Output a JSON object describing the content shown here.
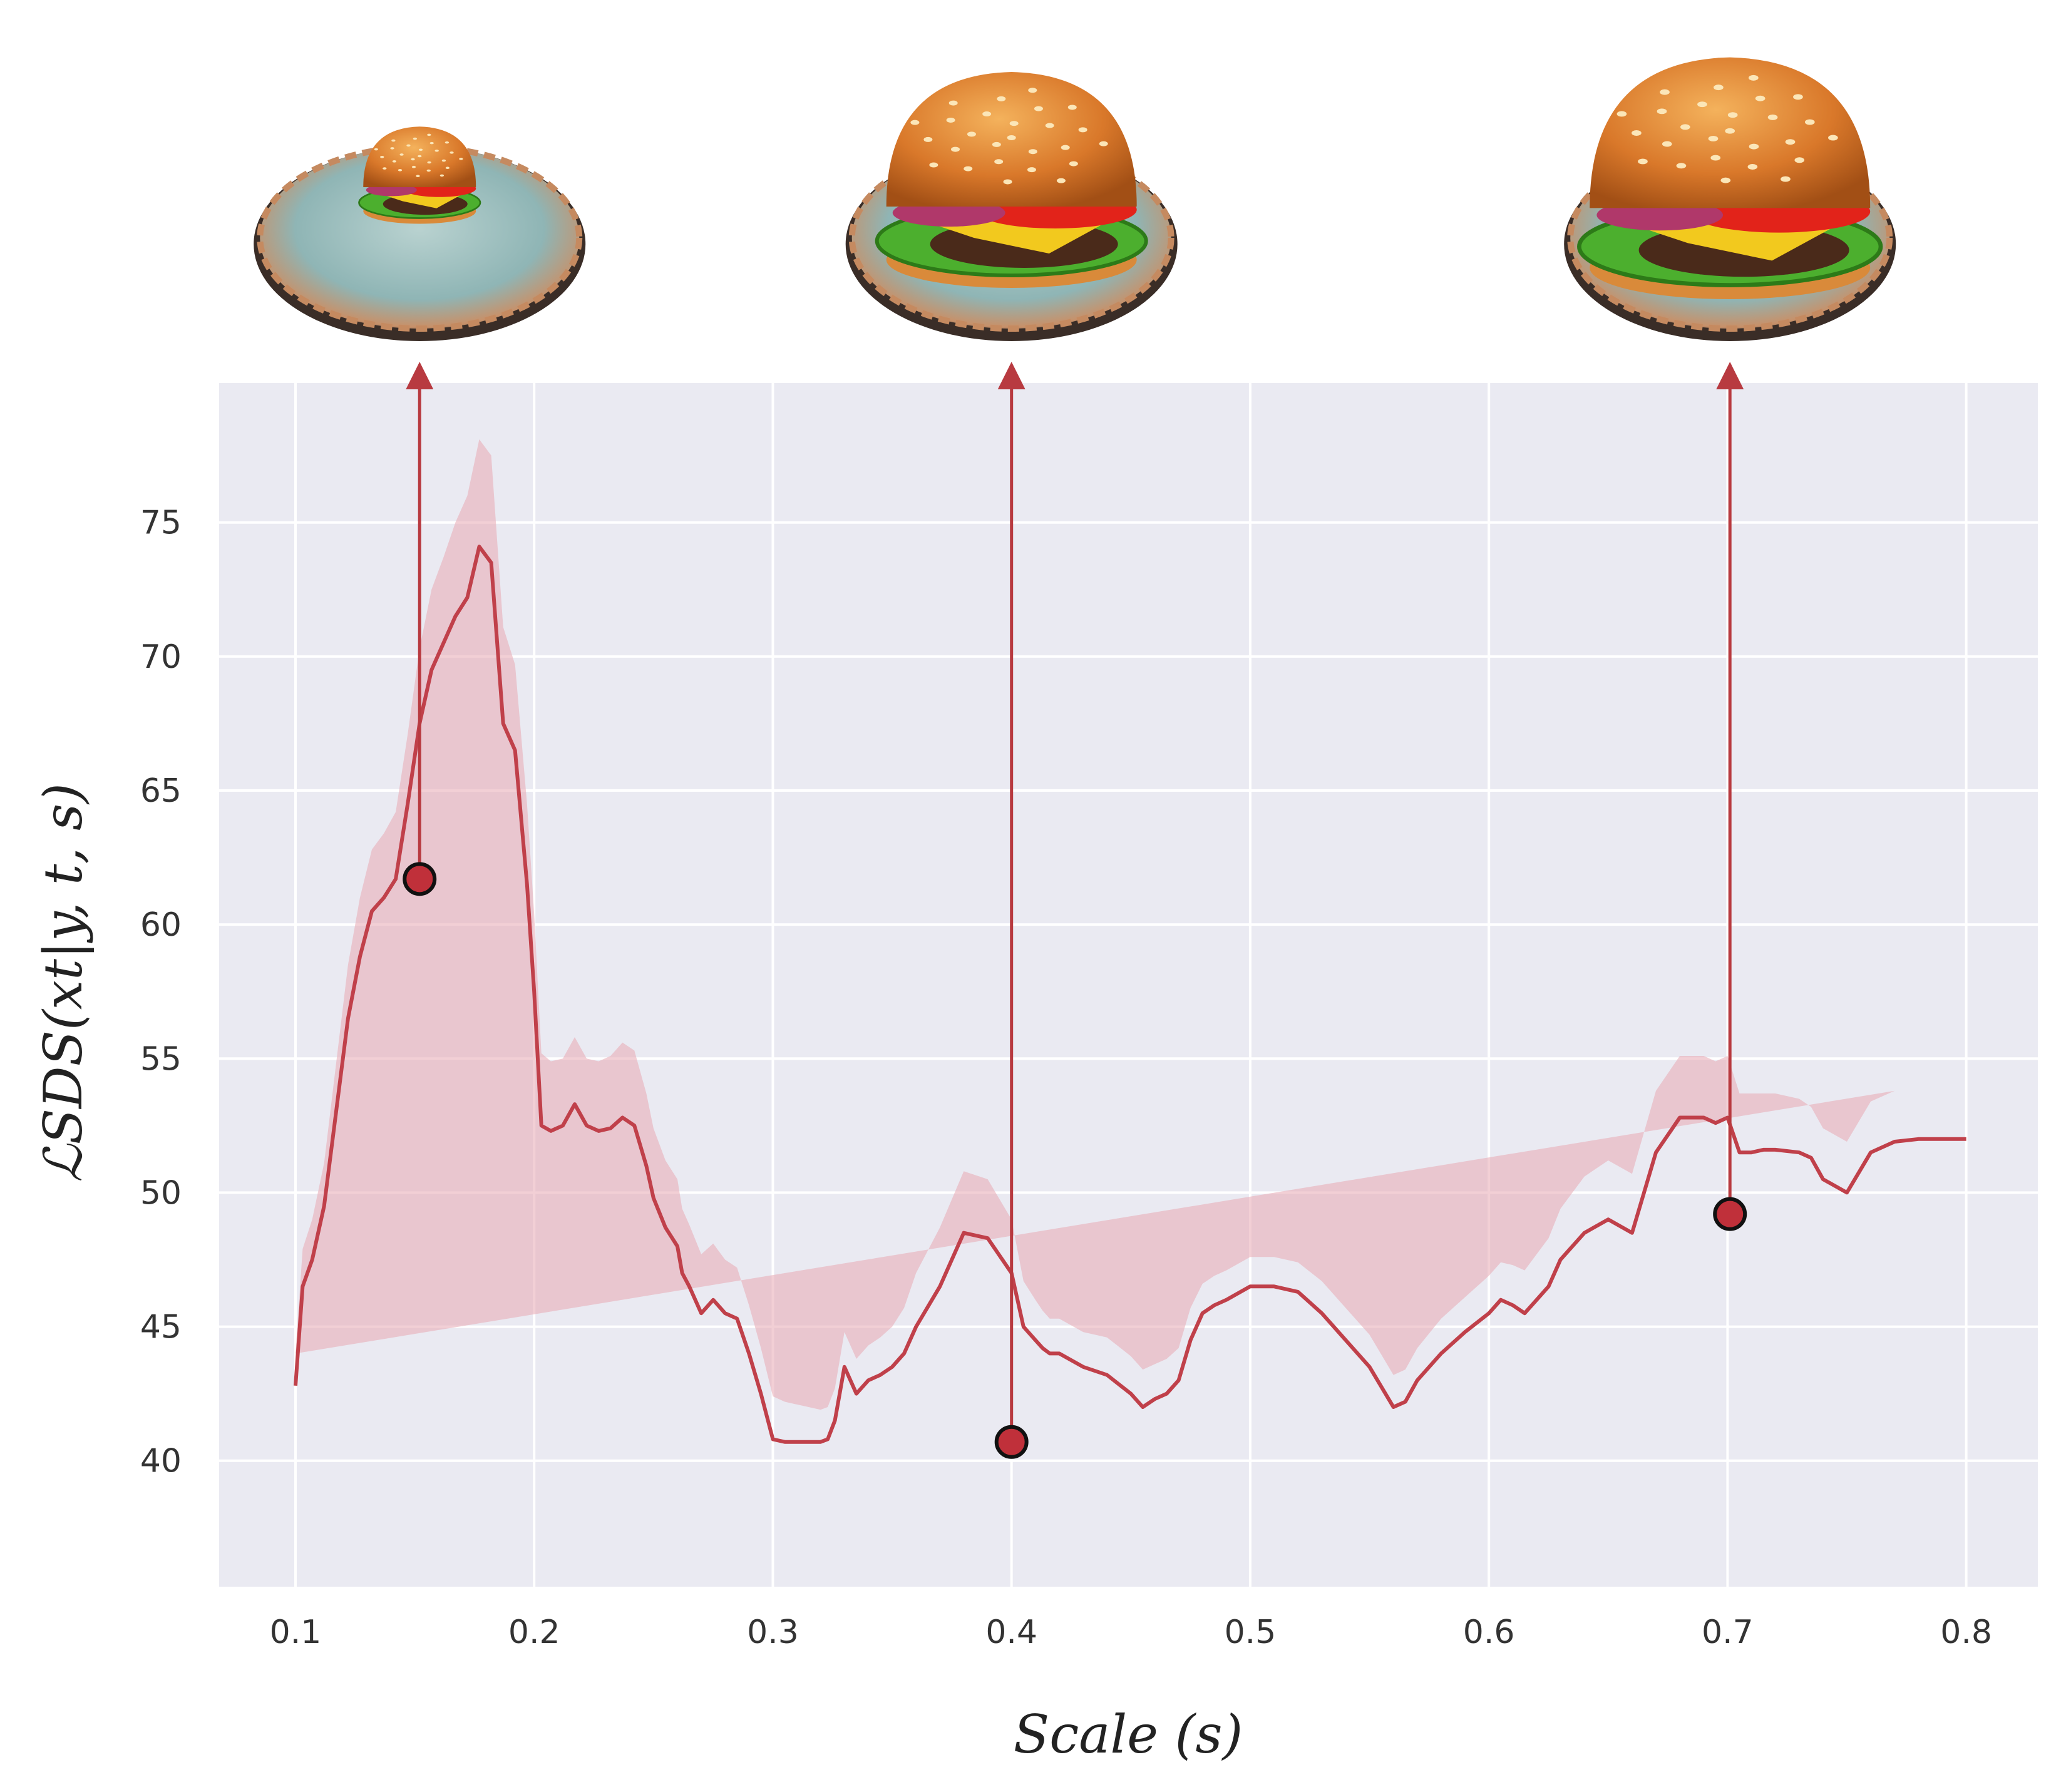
{
  "chart_data": {
    "type": "line",
    "title": "",
    "xlabel": "Scale (s)",
    "ylabel": "ℒSDS(xt|y, t, s)",
    "xlim": [
      0.068,
      0.83
    ],
    "ylim": [
      35.3,
      80.2
    ],
    "grid": true,
    "legend": "none",
    "x_ticks": [
      0.1,
      0.2,
      0.3,
      0.4,
      0.5,
      0.6,
      0.7,
      0.8
    ],
    "x_tick_labels": [
      "0.1",
      "0.2",
      "0.3",
      "0.4",
      "0.5",
      "0.6",
      "0.7",
      "0.8"
    ],
    "y_ticks": [
      40,
      45,
      50,
      55,
      60,
      65,
      70,
      75
    ],
    "y_tick_labels": [
      "40",
      "45",
      "50",
      "55",
      "60",
      "65",
      "70",
      "75"
    ],
    "series": [
      {
        "color": "#c0404a",
        "band_color": "#e8a7b2",
        "x": [
          0.1,
          0.103,
          0.107,
          0.112,
          0.117,
          0.122,
          0.127,
          0.132,
          0.137,
          0.142,
          0.147,
          0.152,
          0.157,
          0.162,
          0.167,
          0.172,
          0.177,
          0.182,
          0.187,
          0.192,
          0.197,
          0.2,
          0.203,
          0.207,
          0.212,
          0.217,
          0.222,
          0.227,
          0.232,
          0.237,
          0.242,
          0.247,
          0.25,
          0.255,
          0.26,
          0.262,
          0.265,
          0.27,
          0.275,
          0.28,
          0.285,
          0.29,
          0.295,
          0.3,
          0.305,
          0.31,
          0.315,
          0.32,
          0.323,
          0.326,
          0.33,
          0.335,
          0.34,
          0.345,
          0.35,
          0.355,
          0.36,
          0.37,
          0.38,
          0.39,
          0.4,
          0.405,
          0.41,
          0.413,
          0.416,
          0.42,
          0.43,
          0.44,
          0.45,
          0.455,
          0.46,
          0.465,
          0.47,
          0.475,
          0.48,
          0.485,
          0.49,
          0.5,
          0.51,
          0.52,
          0.53,
          0.54,
          0.55,
          0.56,
          0.565,
          0.57,
          0.58,
          0.59,
          0.6,
          0.605,
          0.61,
          0.615,
          0.62,
          0.625,
          0.63,
          0.635,
          0.64,
          0.65,
          0.66,
          0.67,
          0.68,
          0.69,
          0.695,
          0.7,
          0.705,
          0.71,
          0.715,
          0.72,
          0.73,
          0.735,
          0.74,
          0.75,
          0.76,
          0.77,
          0.78,
          0.785,
          0.79,
          0.8
        ],
        "y": [
          42.8,
          46.5,
          47.5,
          49.5,
          53.0,
          56.5,
          58.8,
          60.5,
          61.0,
          61.7,
          64.5,
          67.5,
          69.5,
          70.5,
          71.5,
          72.2,
          74.1,
          73.5,
          67.5,
          66.5,
          61.5,
          57.5,
          52.5,
          52.3,
          52.5,
          53.3,
          52.5,
          52.3,
          52.4,
          52.8,
          52.5,
          51.0,
          49.8,
          48.7,
          48.0,
          47.0,
          46.5,
          45.5,
          46.0,
          45.5,
          45.3,
          44.0,
          42.5,
          40.8,
          40.7,
          40.7,
          40.7,
          40.7,
          40.8,
          41.5,
          43.5,
          42.5,
          43.0,
          43.2,
          43.5,
          44.0,
          45.0,
          46.5,
          48.5,
          48.3,
          47.0,
          45.0,
          44.5,
          44.2,
          44.0,
          44.0,
          43.5,
          43.2,
          42.5,
          42.0,
          42.3,
          42.5,
          43.0,
          44.5,
          45.5,
          45.8,
          46.0,
          46.5,
          46.5,
          46.3,
          45.5,
          44.5,
          43.5,
          42.0,
          42.2,
          43.0,
          44.0,
          44.8,
          45.5,
          46.0,
          45.8,
          45.5,
          46.0,
          46.5,
          47.5,
          48.0,
          48.5,
          49.0,
          48.5,
          51.5,
          52.8,
          52.8,
          52.6,
          52.8,
          51.5,
          51.5,
          51.6,
          51.6,
          51.5,
          51.3,
          50.5,
          50.0,
          51.5,
          51.9,
          52.0,
          52.0,
          52.0,
          52.0
        ],
        "band_half_width": [
          1.2,
          1.4,
          1.5,
          1.6,
          1.8,
          2.0,
          2.2,
          2.3,
          2.4,
          2.5,
          2.6,
          2.8,
          3.0,
          3.2,
          3.5,
          3.8,
          4.0,
          4.0,
          3.6,
          3.2,
          3.0,
          2.9,
          2.7,
          2.6,
          2.5,
          2.5,
          2.5,
          2.6,
          2.7,
          2.8,
          2.8,
          2.7,
          2.6,
          2.5,
          2.5,
          2.4,
          2.3,
          2.2,
          2.1,
          2.0,
          1.9,
          1.8,
          1.7,
          1.6,
          1.5,
          1.4,
          1.3,
          1.2,
          1.2,
          1.2,
          1.3,
          1.3,
          1.3,
          1.4,
          1.5,
          1.7,
          2.0,
          2.2,
          2.3,
          2.2,
          2.0,
          1.7,
          1.5,
          1.4,
          1.3,
          1.3,
          1.3,
          1.4,
          1.4,
          1.4,
          1.3,
          1.3,
          1.2,
          1.2,
          1.1,
          1.1,
          1.1,
          1.1,
          1.1,
          1.1,
          1.2,
          1.2,
          1.2,
          1.2,
          1.2,
          1.2,
          1.3,
          1.3,
          1.4,
          1.4,
          1.5,
          1.6,
          1.7,
          1.8,
          1.9,
          2.0,
          2.1,
          2.2,
          2.2,
          2.3,
          2.3,
          2.3,
          2.3,
          2.3,
          2.2,
          2.2,
          2.1,
          2.1,
          2.0,
          1.9,
          1.9,
          1.9,
          1.9,
          1.9
        ]
      }
    ],
    "highlighted_points": [
      {
        "x": 0.152,
        "y": 61.7
      },
      {
        "x": 0.4,
        "y": 40.7
      },
      {
        "x": 0.701,
        "y": 49.2
      }
    ],
    "thumbnail_images": [
      {
        "x": 0.152,
        "description": "small burger on large plate"
      },
      {
        "x": 0.4,
        "description": "medium burger on plate"
      },
      {
        "x": 0.701,
        "description": "large burger on plate"
      }
    ]
  }
}
